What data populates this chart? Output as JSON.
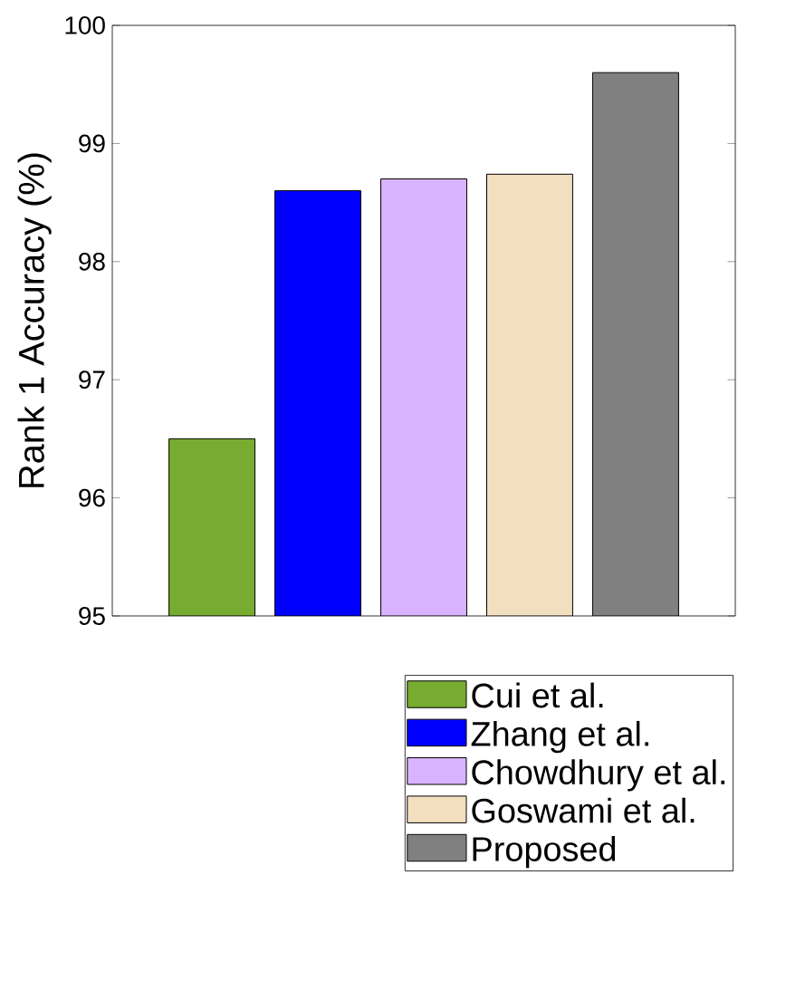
{
  "chart_data": {
    "type": "bar",
    "ylabel": "Rank 1 Accuracy (%)",
    "categories": [
      null
    ],
    "ylim": [
      95,
      100
    ],
    "yticks": [
      95,
      96,
      97,
      98,
      99,
      100
    ],
    "legend": "bottom",
    "grid": false,
    "series": [
      {
        "name": "Cui et al.",
        "color": "#77ac30",
        "values": [
          96.5
        ]
      },
      {
        "name": "Zhang et al.",
        "color": "#0000ff",
        "values": [
          98.6
        ]
      },
      {
        "name": "Chowdhury et al.",
        "color": "#d9b3ff",
        "values": [
          98.7
        ]
      },
      {
        "name": "Goswami et al.",
        "color": "#f2dfc0",
        "values": [
          98.74
        ]
      },
      {
        "name": "Proposed",
        "color": "#808080",
        "values": [
          99.6
        ]
      }
    ]
  }
}
